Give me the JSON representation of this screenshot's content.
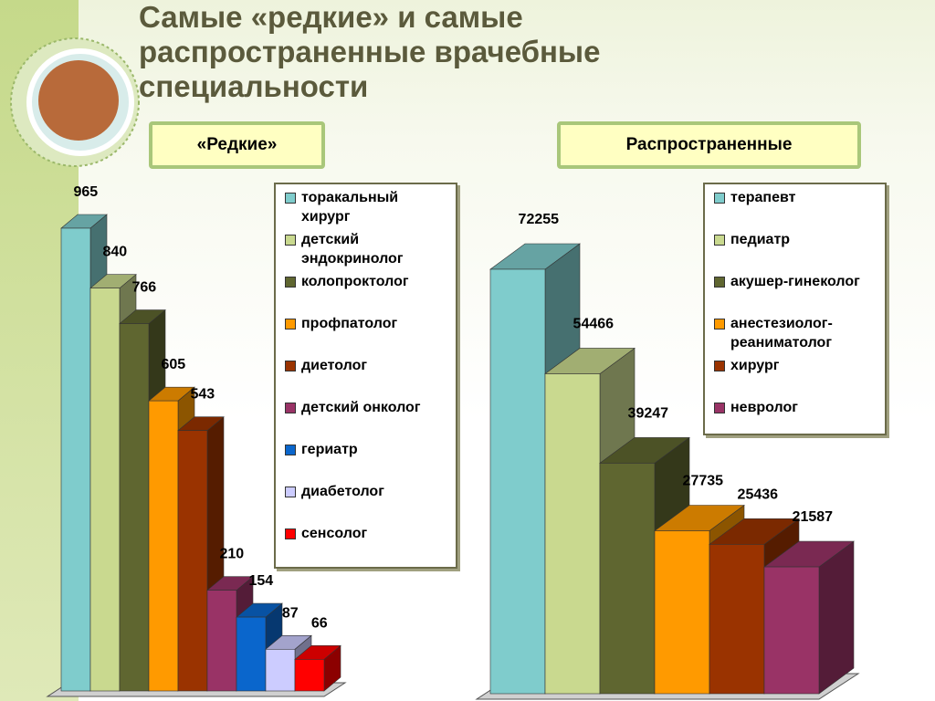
{
  "title": "Самые «редкие» и самые распространенные врачебные специальности",
  "chart_data": [
    {
      "type": "bar3d",
      "title": "«Редкие»",
      "categories": [
        "торакальный хирург",
        "детский эндокринолог",
        "колопроктолог",
        "профпатолог",
        "диетолог",
        "детский онколог",
        "гериатр",
        "диабетолог",
        "сенсолог"
      ],
      "values": [
        965,
        840,
        766,
        605,
        543,
        210,
        154,
        87,
        66
      ],
      "colors": [
        "#7fcccc",
        "#c9d98f",
        "#5f6630",
        "#ff9a00",
        "#9a3300",
        "#993366",
        "#0a66cc",
        "#ccccff",
        "#ff0000"
      ]
    },
    {
      "type": "bar3d",
      "title": "Распространенные",
      "categories": [
        "терапевт",
        "педиатр",
        "акушер-гинеколог",
        "анестезиолог-реаниматолог",
        "хирург",
        "невролог"
      ],
      "values": [
        72255,
        54466,
        39247,
        27735,
        25436,
        21587
      ],
      "colors": [
        "#7fcccc",
        "#c9d98f",
        "#5f6630",
        "#ff9a00",
        "#9a3300",
        "#993366"
      ]
    }
  ]
}
